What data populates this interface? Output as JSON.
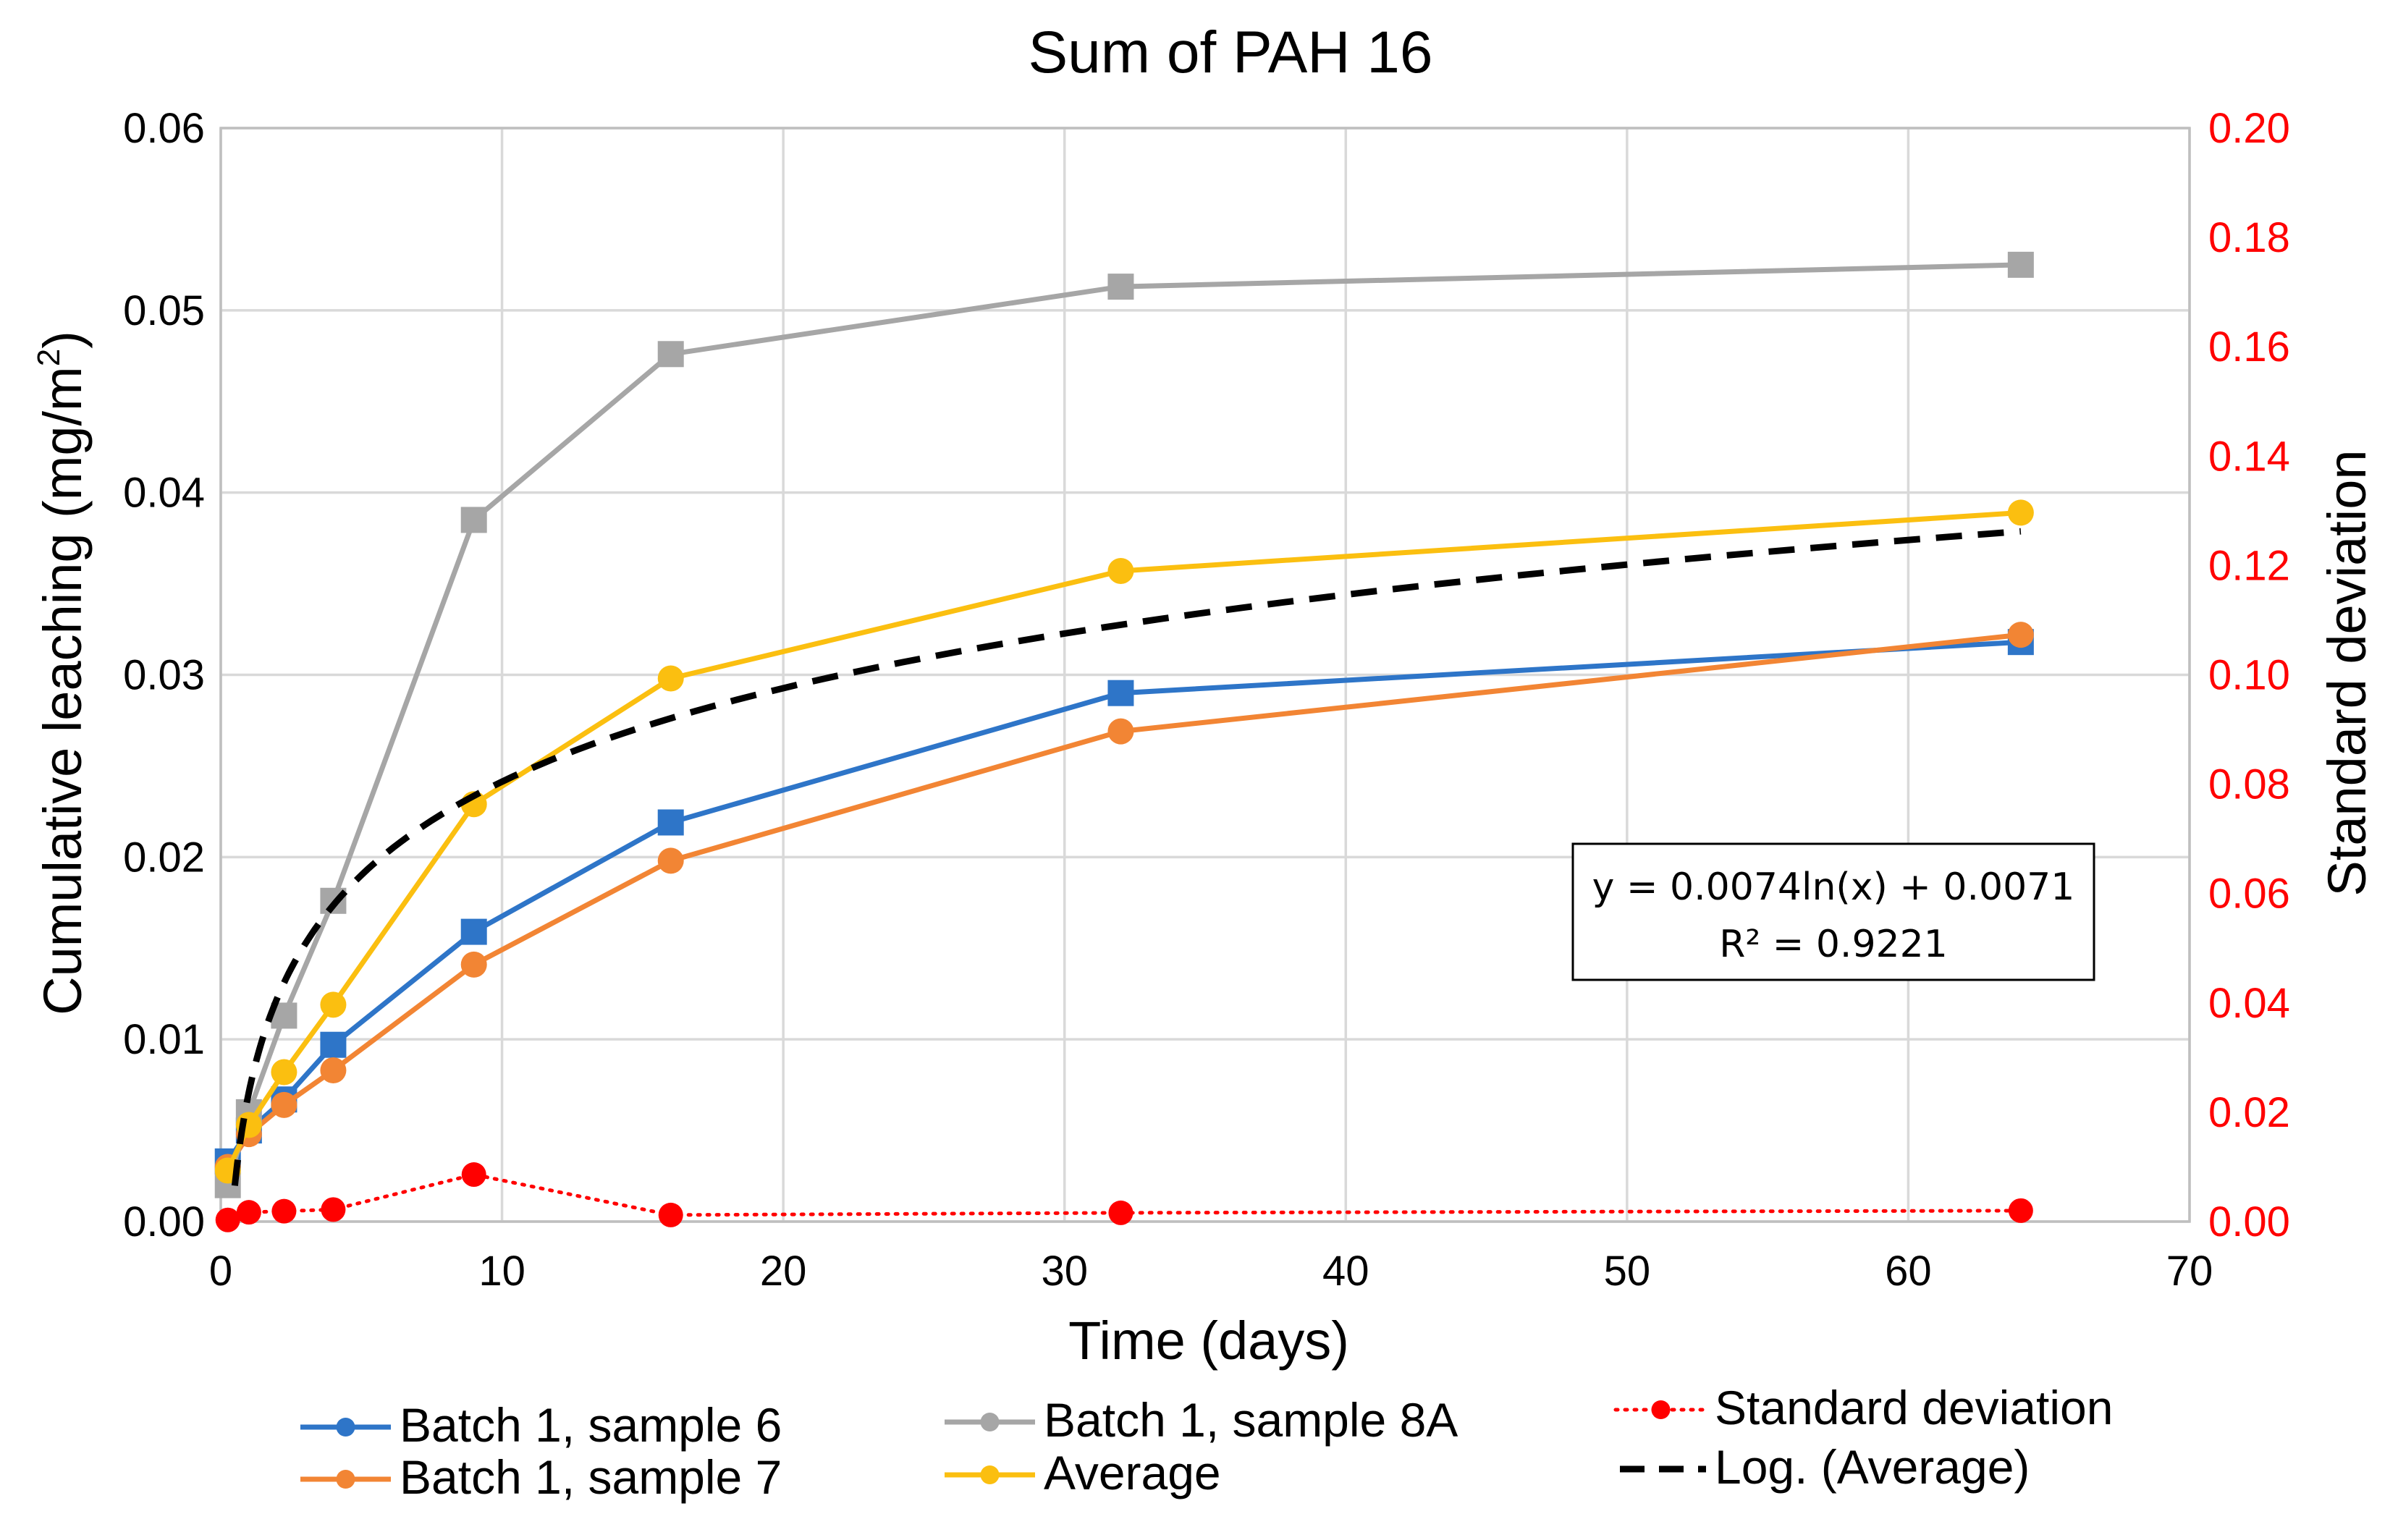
{
  "chart_data": {
    "type": "line",
    "title": "Sum of PAH 16",
    "xlabel": "Time (days)",
    "ylabel": "Cumulative leaching (mg/m",
    "ylabel_superscript": "2",
    "ylabel_close": ")",
    "y2label": "Standard deviation",
    "xlim": [
      0,
      70
    ],
    "ylim": [
      0,
      0.06
    ],
    "y2lim": [
      0,
      0.2
    ],
    "x_ticks": [
      "0",
      "10",
      "20",
      "30",
      "40",
      "50",
      "60",
      "70"
    ],
    "y_ticks": [
      "0.00",
      "0.01",
      "0.02",
      "0.03",
      "0.04",
      "0.05",
      "0.06"
    ],
    "y2_ticks": [
      "0.00",
      "0.02",
      "0.04",
      "0.06",
      "0.08",
      "0.10",
      "0.12",
      "0.14",
      "0.16",
      "0.18",
      "0.20"
    ],
    "grid": true,
    "x": [
      0.25,
      1,
      2.25,
      4,
      9,
      16,
      32,
      64
    ],
    "series": [
      {
        "name": "Batch 1, sample 6",
        "axis": "left",
        "color": "#2e75c8",
        "marker": "square",
        "values": [
          0.0033,
          0.005,
          0.0067,
          0.0097,
          0.0159,
          0.0219,
          0.029,
          0.0318
        ]
      },
      {
        "name": "Batch 1, sample 7",
        "axis": "left",
        "color": "#f28534",
        "marker": "circle",
        "values": [
          0.003,
          0.0048,
          0.0064,
          0.0083,
          0.0141,
          0.0198,
          0.0269,
          0.0322
        ]
      },
      {
        "name": "Batch 1, sample 8A",
        "axis": "left",
        "color": "#a6a6a6",
        "marker": "square",
        "values": [
          0.002,
          0.006,
          0.0113,
          0.0176,
          0.0385,
          0.0476,
          0.0513,
          0.0525
        ]
      },
      {
        "name": "Average",
        "axis": "left",
        "color": "#fbbf10",
        "marker": "circle",
        "values": [
          0.0028,
          0.0053,
          0.0082,
          0.0119,
          0.0229,
          0.0298,
          0.0357,
          0.0389
        ]
      },
      {
        "name": "Standard deviation",
        "axis": "right",
        "color": "#ff0000",
        "marker": "circle",
        "dotted": true,
        "values": [
          0.0003,
          0.0017,
          0.0019,
          0.0022,
          0.0086,
          0.0012,
          0.0016,
          0.002
        ]
      }
    ],
    "trendline": {
      "name": "Log. (Average)",
      "of": "Average",
      "type": "logarithmic",
      "a": 0.0074,
      "b": 0.0071,
      "x_range": [
        0.5,
        64
      ],
      "color": "#000000",
      "equation_label": "y = 0.0074ln(x) + 0.0071",
      "r2_label": "R² = 0.9221"
    },
    "legend": {
      "placement": "bottom",
      "entries": [
        "Batch 1, sample 6",
        "Batch 1, sample 7",
        "Batch 1, sample 8A",
        "Average",
        "Standard deviation",
        "Log. (Average)"
      ]
    }
  }
}
